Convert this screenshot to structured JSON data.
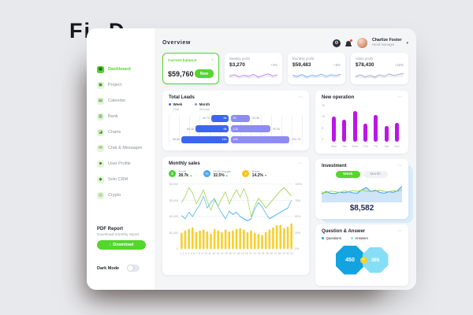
{
  "ui": {
    "more_icon": "⋯",
    "caret_icon": "▾",
    "plus_icon": "+",
    "up_icon": "▲",
    "down_icon": "▼",
    "download_icon": "↓",
    "equals_icon": "=",
    "gear_icon": "⚙",
    "accent_green": "#54d62c"
  },
  "logo": {
    "text": "FiAD",
    "part1": "Fi",
    "part2": "D"
  },
  "sidebar": {
    "items": [
      {
        "label": "Dashboard",
        "icon": "dashboard-icon",
        "glyph": "▦",
        "active": true
      },
      {
        "label": "Project",
        "icon": "project-icon",
        "glyph": "▣",
        "active": false
      },
      {
        "label": "Calendar",
        "icon": "calendar-icon",
        "glyph": "▤",
        "active": false
      },
      {
        "label": "Bank",
        "icon": "bank-icon",
        "glyph": "▥",
        "active": false
      },
      {
        "label": "Charts",
        "icon": "charts-icon",
        "glyph": "◪",
        "active": false
      },
      {
        "label": "Chat & Messages",
        "icon": "chat-icon",
        "glyph": "✉",
        "active": false
      },
      {
        "label": "User Profile",
        "icon": "user-icon",
        "glyph": "☻",
        "active": false
      },
      {
        "label": "Solo CRM",
        "icon": "crm-icon",
        "glyph": "◆",
        "active": false
      },
      {
        "label": "Crypto",
        "icon": "crypto-icon",
        "glyph": "◎",
        "active": false
      }
    ],
    "pdf_report": {
      "title": "PDF Report",
      "subtitle": "Download monthly report",
      "button_label": "Download"
    },
    "dark_mode_label": "Dark Mode",
    "dark_mode_state": "off"
  },
  "header": {
    "title": "Overview",
    "user_name": "Charlize Foster",
    "user_role": "Head manager"
  },
  "balance_card": {
    "label": "Current balance",
    "value": "$59,760",
    "button_label": "New"
  },
  "profit_cards": [
    {
      "label": "Weekly profit",
      "value": "$3,270",
      "delta": "+4%",
      "color": "#c07df0",
      "sparkline": [
        45,
        60,
        38,
        55,
        42,
        65,
        35,
        52,
        70,
        48,
        58
      ]
    },
    {
      "label": "Monthly profit",
      "value": "$59,483",
      "delta": "+8%",
      "color": "#6aa8f7",
      "sparkline": [
        55,
        40,
        62,
        35,
        55,
        45,
        68,
        42,
        60,
        50,
        65
      ]
    },
    {
      "label": "Visits profit",
      "value": "$78,430",
      "delta": "+10%",
      "color": "#93a8c9",
      "sparkline": [
        42,
        58,
        38,
        52,
        34,
        58,
        44,
        68,
        52,
        64,
        72
      ]
    }
  ],
  "chart_data": [
    {
      "id": "total_leads",
      "type": "bar",
      "title": "Total Leads",
      "legend": [
        {
          "label": "Week",
          "sub": "First",
          "color": "#3c66f0"
        },
        {
          "label": "Month",
          "sub": "Second",
          "color": "#8d8cf3"
        }
      ],
      "rows": [
        {
          "left_label": "44.7k",
          "week_value": "8k",
          "month_value": "9k",
          "right_label": "50.8k",
          "week_len": 22,
          "month_len": 24
        },
        {
          "left_label": "65.3k",
          "week_value": "9k",
          "month_value": "12k",
          "right_label": "90.3k",
          "week_len": 42,
          "month_len": 50
        },
        {
          "left_label": "88.8k",
          "week_value": "11k",
          "month_value": "15k",
          "right_label": "102.7k",
          "week_len": 60,
          "month_len": 74
        }
      ]
    },
    {
      "id": "new_operation",
      "type": "bar",
      "title": "New operation",
      "categories": [
        "Mon",
        "Tue",
        "Wed",
        "Thu",
        "Fri",
        "Sat",
        "Sun"
      ],
      "values": [
        10,
        8.5,
        12,
        7,
        10.5,
        6,
        7.5
      ],
      "ylim": [
        0,
        15
      ],
      "yticks": [
        "15",
        "10",
        "5",
        "0"
      ],
      "bar_color": "#bb16e6"
    },
    {
      "id": "investment",
      "type": "area",
      "title": "Investment",
      "buttons": [
        "Week",
        "Month"
      ],
      "active_button": "Week",
      "value_label": "$8,582",
      "area_series": [
        40,
        54,
        44,
        42,
        50,
        46,
        52,
        46,
        44,
        62,
        74,
        54,
        60,
        48,
        44,
        52,
        48,
        58,
        80
      ],
      "line_series": [
        50,
        46,
        55,
        52,
        48,
        56,
        52,
        58,
        54,
        60,
        56,
        52,
        56,
        60,
        54,
        52,
        58,
        54,
        62
      ],
      "area_fill": "#cfe4f8",
      "area_line_color": "#41a2e8",
      "line_color": "#96d44c"
    },
    {
      "id": "monthly_sales",
      "type": "line+bar",
      "title": "Monthly sales",
      "stats": [
        {
          "label": "Profit",
          "value": "28.7k",
          "trend": "up",
          "icon_color": "#4cd137",
          "icon_glyph": "$"
        },
        {
          "label": "Profit margin",
          "value": "32.5%",
          "trend": "up",
          "icon_color": "#4aa8f0",
          "icon_glyph": "%"
        },
        {
          "label": "Sales",
          "value": "14.2%",
          "trend": "down",
          "icon_color": "#f5c518",
          "icon_glyph": "●"
        }
      ],
      "x": [
        1,
        2,
        3,
        4,
        5,
        6,
        7,
        8,
        9,
        10,
        11,
        12,
        13,
        14,
        15,
        16,
        17,
        18,
        19,
        20,
        21,
        22,
        23,
        24,
        25,
        26,
        27,
        28,
        29,
        30,
        31
      ],
      "left_ticks": [
        "$4,000",
        "$3,000",
        "$2,000",
        "$1,000",
        "0"
      ],
      "right_ticks": [
        "100%",
        "75%",
        "50%",
        "25%",
        "0%"
      ],
      "series": [
        {
          "name": "profit",
          "color": "#9ad54e",
          "values": [
            3300,
            3600,
            4000,
            3750,
            3250,
            3550,
            3900,
            3350,
            2950,
            3400,
            3150,
            3500,
            3800,
            3250,
            3600,
            3900,
            3550,
            3950,
            3500,
            2650,
            3150,
            3500,
            3300,
            3050,
            3250,
            3450,
            3650,
            3850,
            4000,
            3800,
            3600
          ]
        },
        {
          "name": "profit_margin",
          "color": "#58b7ea",
          "values": [
            2700,
            2550,
            2850,
            2650,
            2950,
            3200,
            3600,
            3050,
            3300,
            3500,
            3100,
            2800,
            2550,
            2900,
            2750,
            2850,
            2650,
            2550,
            2450,
            2550,
            3000,
            3300,
            3100,
            2800,
            2550,
            2650,
            2750,
            2850,
            2950,
            3050,
            3400
          ]
        }
      ],
      "bars": {
        "name": "sales",
        "color": "#f8cf2c",
        "values": [
          48,
          55,
          60,
          64,
          50,
          55,
          58,
          52,
          46,
          60,
          55,
          50,
          58,
          52,
          55,
          60,
          62,
          58,
          50,
          55,
          48,
          45,
          42,
          50,
          58,
          64,
          70,
          72,
          62,
          66,
          76
        ]
      }
    },
    {
      "id": "question_answer",
      "type": "other",
      "title": "Question & Answer",
      "legend": [
        {
          "label": "Questions",
          "color": "#12a3e0"
        },
        {
          "label": "Answers",
          "color": "#85def5"
        }
      ],
      "values": [
        {
          "label": "450",
          "color": "#12a3e0"
        },
        {
          "label": "365",
          "color": "#85def5"
        }
      ]
    }
  ]
}
